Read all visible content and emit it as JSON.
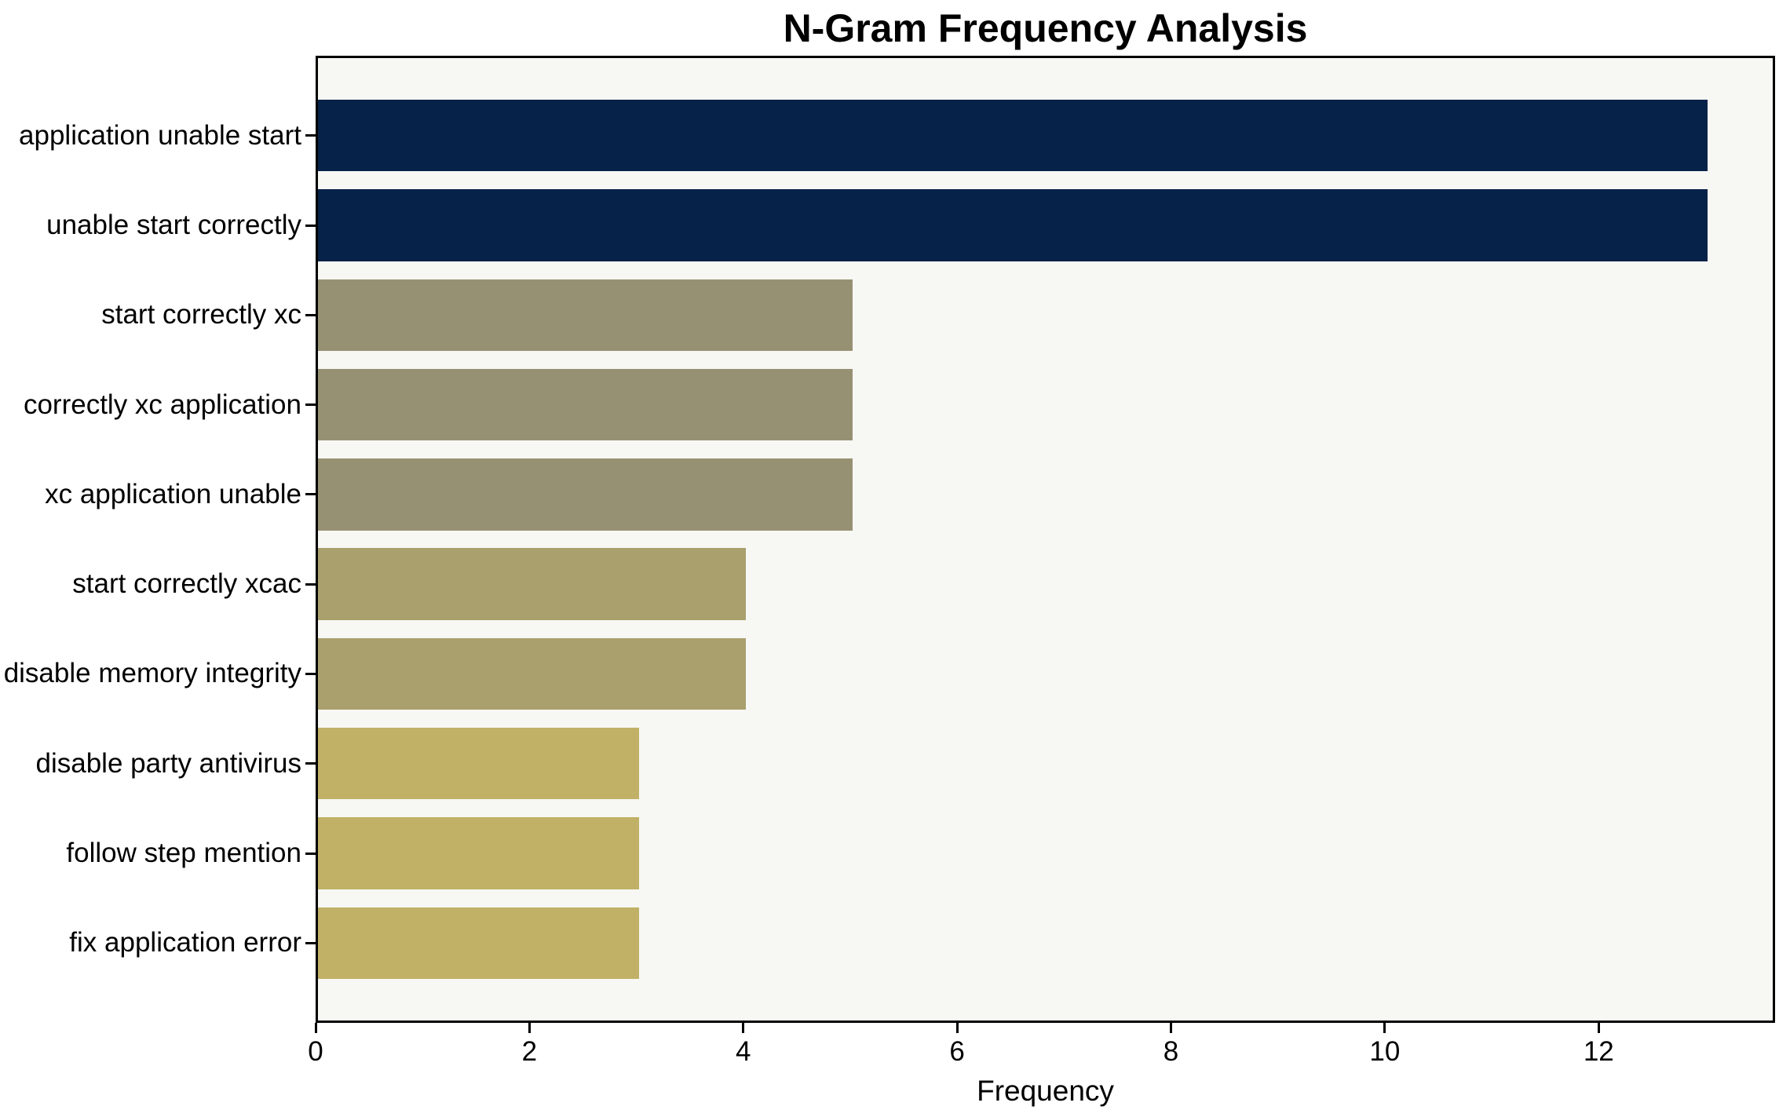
{
  "chart_data": {
    "type": "bar",
    "orientation": "horizontal",
    "title": "N-Gram Frequency Analysis",
    "xlabel": "Frequency",
    "ylabel": "",
    "categories": [
      "application unable start",
      "unable start correctly",
      "start correctly xc",
      "correctly xc application",
      "xc application unable",
      "start correctly xcac",
      "disable memory integrity",
      "disable party antivirus",
      "follow step mention",
      "fix application error"
    ],
    "values": [
      13,
      13,
      5,
      5,
      5,
      4,
      4,
      3,
      3,
      3
    ],
    "bar_colors": [
      "#062249",
      "#062249",
      "#979173",
      "#979173",
      "#979173",
      "#a9a06d",
      "#a9a06d",
      "#c0b167",
      "#c0b167",
      "#c0b167"
    ],
    "xticks": [
      0,
      2,
      4,
      6,
      8,
      10,
      12
    ],
    "xtick_labels": [
      "0",
      "2",
      "4",
      "6",
      "8",
      "10",
      "12"
    ],
    "xlim": [
      0,
      13.65
    ],
    "grid": false,
    "legend_position": "none",
    "colors": {
      "figure_background": "#ffffff",
      "plot_background": "#f7f7f4",
      "axis": "#000000",
      "text": "#000000"
    }
  }
}
